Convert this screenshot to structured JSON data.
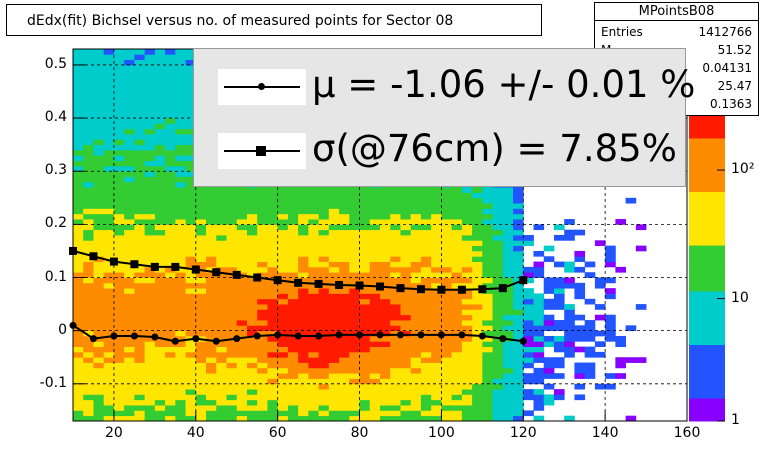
{
  "title": "dEdx(fit) Bichsel versus no. of measured points for Sector 08",
  "stats": {
    "name": "MPointsB08",
    "rows": [
      {
        "label": "Entries",
        "value": "1412766"
      },
      {
        "label": "M",
        "value": "51.52"
      },
      {
        "label": "",
        "value": "0.04131"
      },
      {
        "label": "",
        "value": "25.47"
      },
      {
        "label": "",
        "value": "0.1363"
      }
    ]
  },
  "legend": {
    "mu_text": "μ  = -1.06 +/-  0.01 %",
    "sigma_text": "σ(@76cm) =  7.85%"
  },
  "colors": {
    "red": "#ff1a00",
    "orange": "#ff8c00",
    "yellow": "#ffe600",
    "green": "#33cc33",
    "cyan": "#00cccc",
    "blue": "#2255ff",
    "violet": "#8800ff"
  },
  "chart_data": {
    "type": "heatmap",
    "title": "dEdx(fit) Bichsel versus no. of measured points for Sector 08",
    "xlim": [
      10,
      160
    ],
    "ylim": [
      -0.17,
      0.53
    ],
    "x_ticks": [
      "20",
      "40",
      "60",
      "80",
      "100",
      "120",
      "140",
      "160"
    ],
    "y_ticks": [
      "0.5",
      "0.4",
      "0.3",
      "0.2",
      "0.1",
      "0",
      "-0.1"
    ],
    "z_scale": "log",
    "z_ticks": [
      "10²",
      "10",
      "1"
    ],
    "grid": true,
    "series": [
      {
        "x": [
          10,
          15,
          20,
          25,
          30,
          35,
          40,
          45,
          50,
          55,
          60,
          65,
          70,
          75,
          80,
          85,
          90,
          95,
          100,
          105,
          110,
          115,
          120
        ],
        "values": [
          0.15,
          0.14,
          0.13,
          0.125,
          0.12,
          0.12,
          0.115,
          0.11,
          0.105,
          0.1,
          0.095,
          0.09,
          0.088,
          0.086,
          0.085,
          0.083,
          0.08,
          0.078,
          0.077,
          0.077,
          0.078,
          0.08,
          0.095
        ]
      },
      {
        "x": [
          10,
          15,
          20,
          25,
          30,
          35,
          40,
          45,
          50,
          55,
          60,
          65,
          70,
          75,
          80,
          85,
          90,
          95,
          100,
          105,
          110,
          115,
          120
        ],
        "values": [
          0.01,
          -0.015,
          -0.01,
          -0.01,
          -0.012,
          -0.02,
          -0.015,
          -0.02,
          -0.015,
          -0.01,
          -0.008,
          -0.01,
          -0.01,
          -0.008,
          -0.008,
          -0.008,
          -0.008,
          -0.008,
          -0.008,
          -0.008,
          -0.01,
          -0.015,
          -0.02
        ]
      }
    ]
  }
}
